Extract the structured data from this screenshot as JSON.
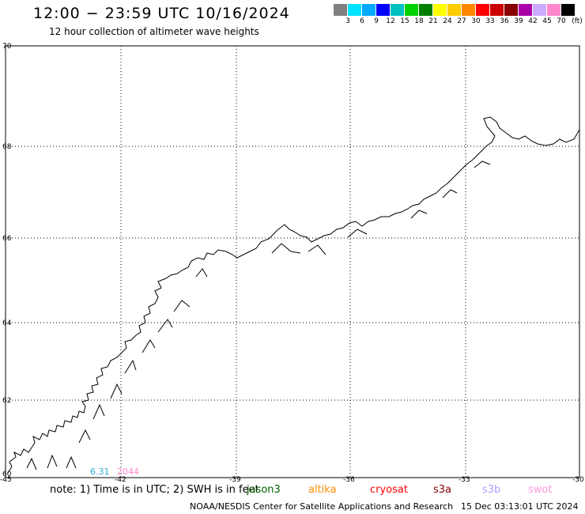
{
  "header": {
    "title": "12:00 − 23:59 UTC 10/16/2024",
    "subtitle": "12 hour collection of altimeter wave heights"
  },
  "legend": {
    "unit": "(ft)",
    "colors": [
      "#808080",
      "#00e5ff",
      "#00aaff",
      "#0000ff",
      "#00c0c0",
      "#00d000",
      "#008000",
      "#ffff00",
      "#ffcc00",
      "#ff8800",
      "#ff0000",
      "#cc0000",
      "#880000",
      "#aa00aa",
      "#ccaaff",
      "#ff88cc",
      "#000000"
    ],
    "labels": [
      "3",
      "6",
      "9",
      "12",
      "15",
      "18",
      "21",
      "24",
      "27",
      "30",
      "33",
      "36",
      "39",
      "42",
      "45",
      "70"
    ]
  },
  "map": {
    "lat_labels": [
      "70",
      "68",
      "66",
      "64",
      "62",
      "60"
    ],
    "lon_labels": [
      "-45",
      "-42",
      "-39",
      "-36",
      "-33",
      "-30"
    ],
    "observations": [
      {
        "text": "6.31",
        "color": "#2aa8d0"
      },
      {
        "text": "2044",
        "color": "#ff88cc"
      }
    ]
  },
  "notes": {
    "text": "note: 1) Time is in UTC; 2) SWH is in feet",
    "satellites": [
      {
        "name": "jason3",
        "color": "#006400"
      },
      {
        "name": "altika",
        "color": "#ff8c00"
      },
      {
        "name": "cryosat",
        "color": "#ff0000"
      },
      {
        "name": "s3a",
        "color": "#8b0000"
      },
      {
        "name": "s3b",
        "color": "#b0a0ff"
      },
      {
        "name": "swot",
        "color": "#ff99dd"
      }
    ]
  },
  "footer": {
    "credit": "NOAA/NESDIS Center for Satellite Applications and Research",
    "timestamp": "15 Dec 03:13:01 UTC 2024"
  }
}
